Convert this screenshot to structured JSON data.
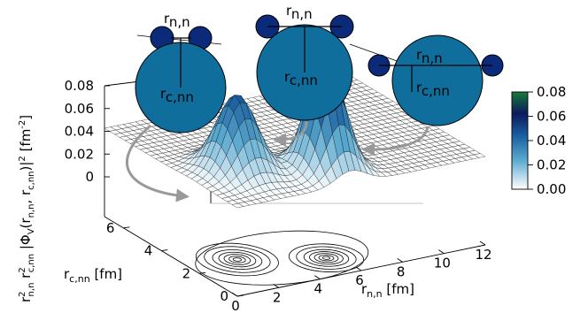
{
  "chart_data": {
    "type": "surface3d",
    "title": "",
    "zlabel": {
      "prefix": "r",
      "sup1": "2",
      "sub1": "n,n",
      "mid": " r",
      "sup2": "2",
      "sub2": "c,nn",
      "body": " |Φ",
      "sub3": "V",
      "args": "(r",
      "sub4": "n,n",
      "comma": ", r",
      "sub5": "c,nn",
      "close": ")|",
      "sup3": "2",
      "unit": " [fm",
      "unit_sup": "-2",
      "unit_close": "]"
    },
    "xlabel": {
      "base": "r",
      "sub": "n,n",
      "unit": " [fm]"
    },
    "ylabel": {
      "base": "r",
      "sub": "c,nn",
      "unit": " [fm]"
    },
    "x_ticks": [
      "0",
      "2",
      "4",
      "6",
      "8",
      "10",
      "12"
    ],
    "y_ticks": [
      "0",
      "2",
      "4",
      "6"
    ],
    "z_ticks": [
      "0",
      "0.02",
      "0.04",
      "0.06",
      "0.08"
    ],
    "xlim": [
      0,
      12
    ],
    "ylim": [
      0,
      7
    ],
    "zlim": [
      0,
      0.08
    ],
    "colorbar": {
      "ticks": [
        "0.00",
        "0.02",
        "0.04",
        "0.06",
        "0.08"
      ],
      "colors": [
        "#ffffff",
        "#1a6fa0",
        "#0a1a5c",
        "#1a7a3a"
      ]
    },
    "peaks": [
      {
        "x": 2.2,
        "y": 2.4,
        "z": 0.047
      },
      {
        "x": 5.5,
        "y": 1.3,
        "z": 0.068
      }
    ],
    "contours_on_base": true,
    "insets": [
      {
        "top_label": {
          "base": "r",
          "sub": "n,n"
        },
        "bottom_label": {
          "base": "r",
          "sub": "c,nn"
        },
        "config": "dineutron"
      },
      {
        "top_label": {
          "base": "r",
          "sub": "n,n"
        },
        "bottom_label": {
          "base": "r",
          "sub": "c,nn"
        },
        "config": "intermediate"
      },
      {
        "top_label": {
          "base": "r",
          "sub": "n,n"
        },
        "bottom_label": {
          "base": "r",
          "sub": "c,nn"
        },
        "config": "cigar"
      }
    ],
    "colors": {
      "core": "#0f6e9c",
      "neutron": "#0c2a7a",
      "arrow": "#999999",
      "axis": "#000000"
    }
  }
}
